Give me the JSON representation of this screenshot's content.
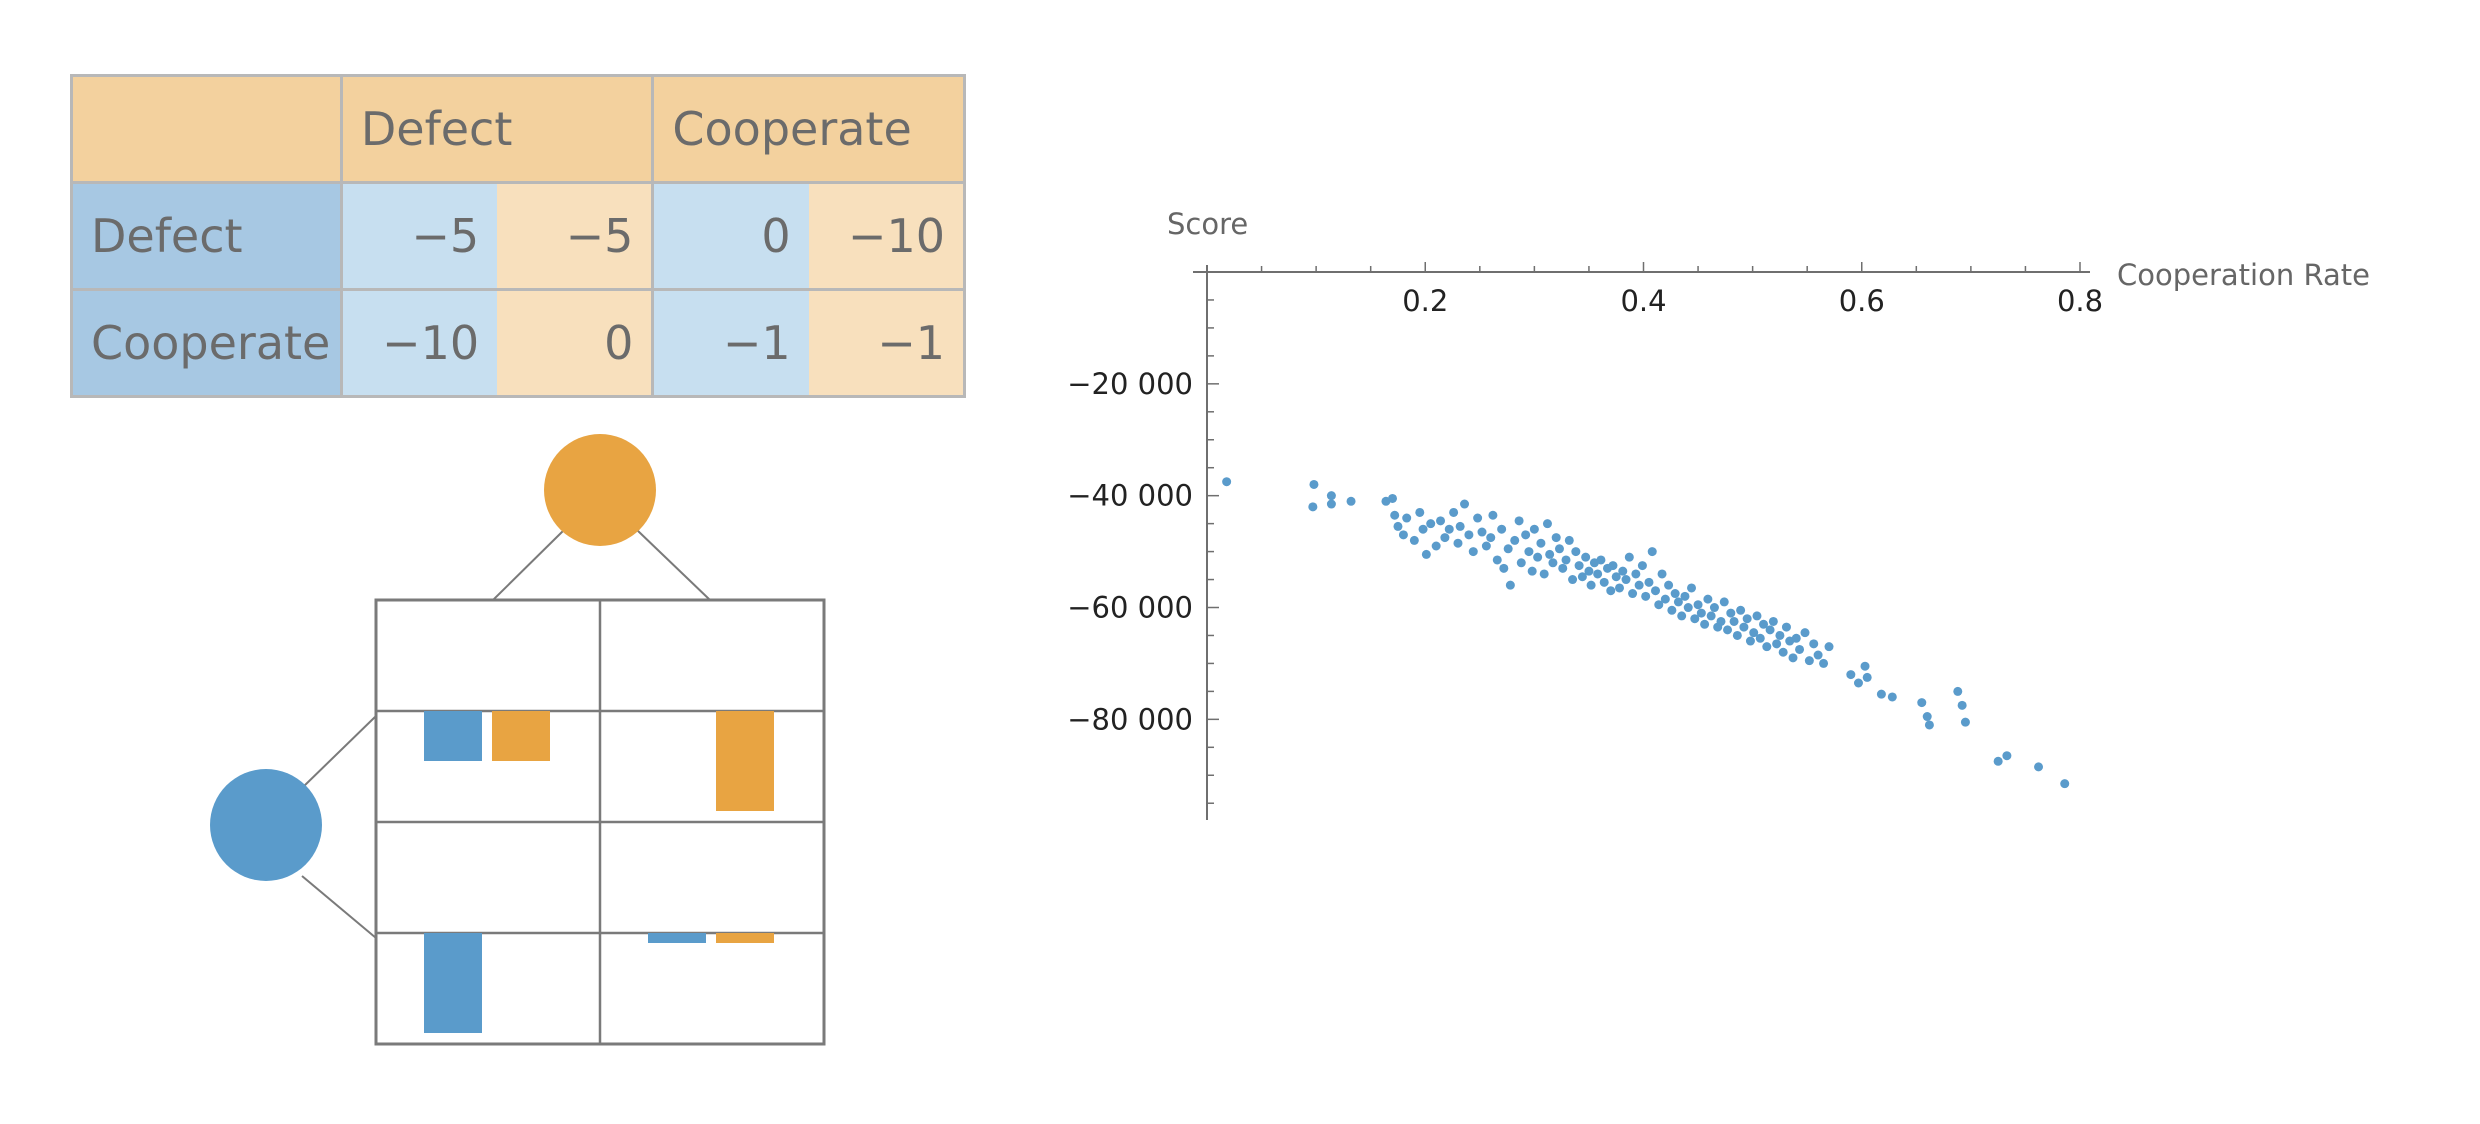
{
  "payoff_table": {
    "col_headers": [
      "",
      "Defect",
      "Cooperate"
    ],
    "rows": [
      {
        "label": "Defect",
        "cells": [
          [
            "−5",
            "−5"
          ],
          [
            "0",
            "−10"
          ]
        ]
      },
      {
        "label": "Cooperate",
        "cells": [
          [
            "−10",
            "0"
          ],
          [
            "−1",
            "−1"
          ]
        ]
      }
    ]
  },
  "payoff_diagram": {
    "colors": {
      "row_player": "#5a9bcb",
      "col_player": "#e8a442",
      "line": "#7a7a7a"
    },
    "payoffs": [
      {
        "row": 0,
        "col": 0,
        "blue": -5,
        "orange": -5
      },
      {
        "row": 0,
        "col": 1,
        "blue": 0,
        "orange": -10
      },
      {
        "row": 1,
        "col": 0,
        "blue": -10,
        "orange": 0
      },
      {
        "row": 1,
        "col": 1,
        "blue": -1,
        "orange": -1
      }
    ]
  },
  "chart_data": {
    "type": "scatter",
    "title": "",
    "xlabel": "Cooperation Rate",
    "ylabel": "Score",
    "xlim": [
      0,
      0.8
    ],
    "ylim": [
      -98000,
      0
    ],
    "x_ticks": [
      0.2,
      0.4,
      0.6,
      0.8
    ],
    "x_tick_labels": [
      "0.2",
      "0.4",
      "0.6",
      "0.8"
    ],
    "y_ticks": [
      -20000,
      -40000,
      -60000,
      -80000
    ],
    "y_tick_labels": [
      "−20 000",
      "−40 000",
      "−60 000",
      "−80 000"
    ],
    "point_color": "#5a9bcb",
    "x_axis_position": "top",
    "points": [
      [
        0.018,
        -37500
      ],
      [
        0.098,
        -38000
      ],
      [
        0.097,
        -42000
      ],
      [
        0.114,
        -40000
      ],
      [
        0.114,
        -41500
      ],
      [
        0.132,
        -41000
      ],
      [
        0.164,
        -41000
      ],
      [
        0.17,
        -40500
      ],
      [
        0.172,
        -43500
      ],
      [
        0.175,
        -45500
      ],
      [
        0.18,
        -47000
      ],
      [
        0.183,
        -44000
      ],
      [
        0.19,
        -48000
      ],
      [
        0.195,
        -43000
      ],
      [
        0.198,
        -46000
      ],
      [
        0.201,
        -50500
      ],
      [
        0.205,
        -45000
      ],
      [
        0.21,
        -49000
      ],
      [
        0.214,
        -44500
      ],
      [
        0.218,
        -47500
      ],
      [
        0.222,
        -46000
      ],
      [
        0.226,
        -43000
      ],
      [
        0.23,
        -48500
      ],
      [
        0.232,
        -45500
      ],
      [
        0.236,
        -41500
      ],
      [
        0.24,
        -47000
      ],
      [
        0.244,
        -50000
      ],
      [
        0.248,
        -44000
      ],
      [
        0.252,
        -46500
      ],
      [
        0.256,
        -49000
      ],
      [
        0.26,
        -47500
      ],
      [
        0.262,
        -43500
      ],
      [
        0.266,
        -51500
      ],
      [
        0.27,
        -46000
      ],
      [
        0.272,
        -53000
      ],
      [
        0.276,
        -49500
      ],
      [
        0.278,
        -56000
      ],
      [
        0.282,
        -48000
      ],
      [
        0.286,
        -44500
      ],
      [
        0.288,
        -52000
      ],
      [
        0.292,
        -47000
      ],
      [
        0.295,
        -50000
      ],
      [
        0.298,
        -53500
      ],
      [
        0.3,
        -46000
      ],
      [
        0.303,
        -51000
      ],
      [
        0.306,
        -48500
      ],
      [
        0.309,
        -54000
      ],
      [
        0.312,
        -45000
      ],
      [
        0.314,
        -50500
      ],
      [
        0.317,
        -52000
      ],
      [
        0.32,
        -47500
      ],
      [
        0.323,
        -49500
      ],
      [
        0.326,
        -53000
      ],
      [
        0.329,
        -51500
      ],
      [
        0.332,
        -48000
      ],
      [
        0.335,
        -55000
      ],
      [
        0.338,
        -50000
      ],
      [
        0.341,
        -52500
      ],
      [
        0.344,
        -54500
      ],
      [
        0.347,
        -51000
      ],
      [
        0.35,
        -53500
      ],
      [
        0.352,
        -56000
      ],
      [
        0.355,
        -52000
      ],
      [
        0.358,
        -54000
      ],
      [
        0.361,
        -51500
      ],
      [
        0.364,
        -55500
      ],
      [
        0.367,
        -53000
      ],
      [
        0.37,
        -57000
      ],
      [
        0.372,
        -52500
      ],
      [
        0.375,
        -54500
      ],
      [
        0.378,
        -56500
      ],
      [
        0.381,
        -53500
      ],
      [
        0.384,
        -55000
      ],
      [
        0.387,
        -51000
      ],
      [
        0.39,
        -57500
      ],
      [
        0.393,
        -54000
      ],
      [
        0.396,
        -56000
      ],
      [
        0.399,
        -52500
      ],
      [
        0.402,
        -58000
      ],
      [
        0.405,
        -55500
      ],
      [
        0.408,
        -50000
      ],
      [
        0.411,
        -57000
      ],
      [
        0.414,
        -59500
      ],
      [
        0.417,
        -54000
      ],
      [
        0.42,
        -58500
      ],
      [
        0.423,
        -56000
      ],
      [
        0.426,
        -60500
      ],
      [
        0.429,
        -57500
      ],
      [
        0.432,
        -59000
      ],
      [
        0.435,
        -61500
      ],
      [
        0.438,
        -58000
      ],
      [
        0.441,
        -60000
      ],
      [
        0.444,
        -56500
      ],
      [
        0.447,
        -62000
      ],
      [
        0.45,
        -59500
      ],
      [
        0.453,
        -61000
      ],
      [
        0.456,
        -63000
      ],
      [
        0.459,
        -58500
      ],
      [
        0.462,
        -61500
      ],
      [
        0.465,
        -60000
      ],
      [
        0.468,
        -63500
      ],
      [
        0.471,
        -62500
      ],
      [
        0.474,
        -59000
      ],
      [
        0.477,
        -64000
      ],
      [
        0.48,
        -61000
      ],
      [
        0.483,
        -62500
      ],
      [
        0.486,
        -65000
      ],
      [
        0.489,
        -60500
      ],
      [
        0.492,
        -63500
      ],
      [
        0.495,
        -62000
      ],
      [
        0.498,
        -66000
      ],
      [
        0.501,
        -64500
      ],
      [
        0.504,
        -61500
      ],
      [
        0.507,
        -65500
      ],
      [
        0.51,
        -63000
      ],
      [
        0.513,
        -67000
      ],
      [
        0.516,
        -64000
      ],
      [
        0.519,
        -62500
      ],
      [
        0.522,
        -66500
      ],
      [
        0.525,
        -65000
      ],
      [
        0.528,
        -68000
      ],
      [
        0.531,
        -63500
      ],
      [
        0.534,
        -66000
      ],
      [
        0.537,
        -69000
      ],
      [
        0.54,
        -65500
      ],
      [
        0.543,
        -67500
      ],
      [
        0.548,
        -64500
      ],
      [
        0.552,
        -69500
      ],
      [
        0.556,
        -66500
      ],
      [
        0.56,
        -68500
      ],
      [
        0.565,
        -70000
      ],
      [
        0.57,
        -67000
      ],
      [
        0.59,
        -72000
      ],
      [
        0.597,
        -73500
      ],
      [
        0.603,
        -70500
      ],
      [
        0.605,
        -72500
      ],
      [
        0.618,
        -75500
      ],
      [
        0.628,
        -76000
      ],
      [
        0.655,
        -77000
      ],
      [
        0.66,
        -79500
      ],
      [
        0.662,
        -81000
      ],
      [
        0.688,
        -75000
      ],
      [
        0.692,
        -77500
      ],
      [
        0.695,
        -80500
      ],
      [
        0.725,
        -87500
      ],
      [
        0.733,
        -86500
      ],
      [
        0.762,
        -88500
      ],
      [
        0.786,
        -91500
      ]
    ]
  }
}
